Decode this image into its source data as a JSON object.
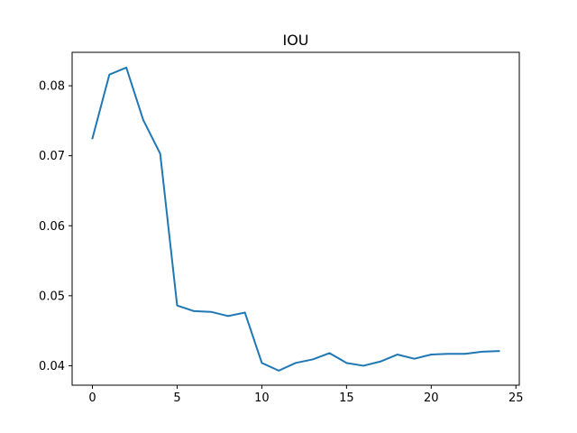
{
  "chart_data": {
    "type": "line",
    "title": "IOU",
    "xlabel": "",
    "ylabel": "",
    "xlim": [
      -1.2,
      25.2
    ],
    "ylim": [
      0.03722,
      0.08478
    ],
    "xticks": [
      0,
      5,
      10,
      15,
      20,
      25
    ],
    "xtick_labels": [
      "0",
      "5",
      "10",
      "15",
      "20",
      "25"
    ],
    "yticks": [
      0.04,
      0.05,
      0.06,
      0.07,
      0.08
    ],
    "ytick_labels": [
      "0.04",
      "0.05",
      "0.06",
      "0.07",
      "0.08"
    ],
    "grid": false,
    "series": [
      {
        "color": "#1f77b4",
        "x": [
          0,
          1,
          2,
          3,
          4,
          5,
          6,
          7,
          8,
          9,
          10,
          11,
          12,
          13,
          14,
          15,
          16,
          17,
          18,
          19,
          20,
          21,
          22,
          23,
          24
        ],
        "values": [
          0.0725,
          0.0816,
          0.0826,
          0.0751,
          0.0703,
          0.0486,
          0.0478,
          0.0477,
          0.0471,
          0.0476,
          0.0404,
          0.0393,
          0.0404,
          0.0409,
          0.0418,
          0.0404,
          0.04,
          0.0406,
          0.0416,
          0.041,
          0.0416,
          0.0417,
          0.0417,
          0.042,
          0.0421
        ]
      }
    ]
  }
}
